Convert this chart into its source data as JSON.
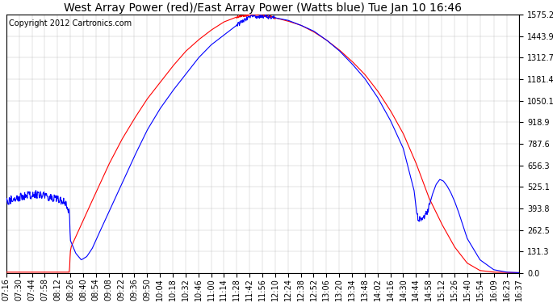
{
  "title": "West Array Power (red)/East Array Power (Watts blue) Tue Jan 10 16:46",
  "copyright_text": "Copyright 2012 Cartronics.com",
  "y_max": 1575.2,
  "y_ticks": [
    0.0,
    131.3,
    262.5,
    393.8,
    525.1,
    656.3,
    787.6,
    918.9,
    1050.1,
    1181.4,
    1312.7,
    1443.9,
    1575.2
  ],
  "x_labels": [
    "07:16",
    "07:30",
    "07:44",
    "07:58",
    "08:12",
    "08:26",
    "08:40",
    "08:54",
    "09:08",
    "09:22",
    "09:36",
    "09:50",
    "10:04",
    "10:18",
    "10:32",
    "10:46",
    "11:00",
    "11:14",
    "11:28",
    "11:42",
    "11:56",
    "12:10",
    "12:24",
    "12:38",
    "12:52",
    "13:06",
    "13:20",
    "13:34",
    "13:48",
    "14:02",
    "14:16",
    "14:30",
    "14:44",
    "14:58",
    "15:12",
    "15:26",
    "15:40",
    "15:54",
    "16:09",
    "16:23",
    "16:37"
  ],
  "bg_color": "#ffffff",
  "plot_bg_color": "#ffffff",
  "grid_color": "#aaaaaa",
  "title_fontsize": 10,
  "copyright_fontsize": 7,
  "tick_fontsize": 7,
  "red_color": "#ff0000",
  "blue_color": "#0000ff"
}
